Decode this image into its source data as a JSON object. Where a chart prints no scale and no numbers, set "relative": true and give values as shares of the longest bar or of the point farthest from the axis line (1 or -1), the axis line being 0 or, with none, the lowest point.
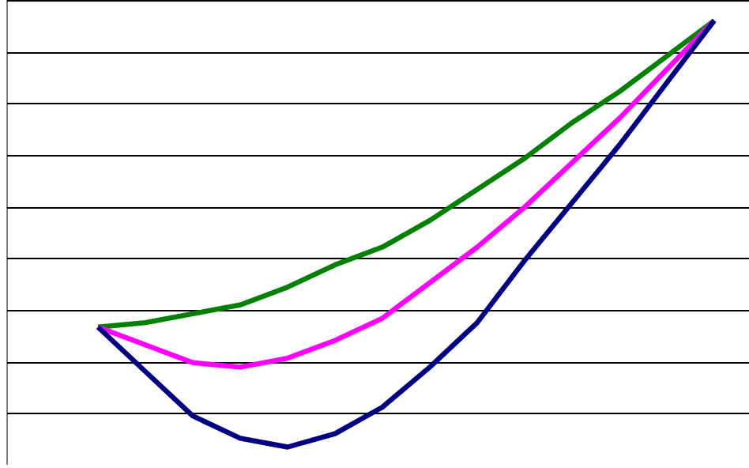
{
  "chart_data": {
    "type": "line",
    "relative": true,
    "grid": "y",
    "marker": "none",
    "line_style": "solid",
    "categories": [
      null,
      null,
      null,
      null,
      null,
      null,
      null,
      null,
      null,
      null,
      null,
      null,
      null,
      null
    ],
    "series": [
      {
        "color": "#008000",
        "values": [
          0.31,
          0.32,
          0.34,
          0.36,
          0.4,
          0.45,
          0.49,
          0.55,
          0.62,
          0.69,
          0.77,
          0.84,
          0.92,
          1
        ]
      },
      {
        "color": "#ff00ff",
        "values": [
          0.31,
          0.27,
          0.23,
          0.22,
          0.24,
          0.28,
          0.33,
          0.41,
          0.49,
          0.58,
          0.68,
          0.78,
          0.89,
          1
        ]
      },
      {
        "color": "#000080",
        "values": [
          0.31,
          0.21,
          0.11,
          0.06,
          0.04,
          0.07,
          0.13,
          0.22,
          0.32,
          0.46,
          0.59,
          0.72,
          0.86,
          1
        ]
      }
    ]
  }
}
